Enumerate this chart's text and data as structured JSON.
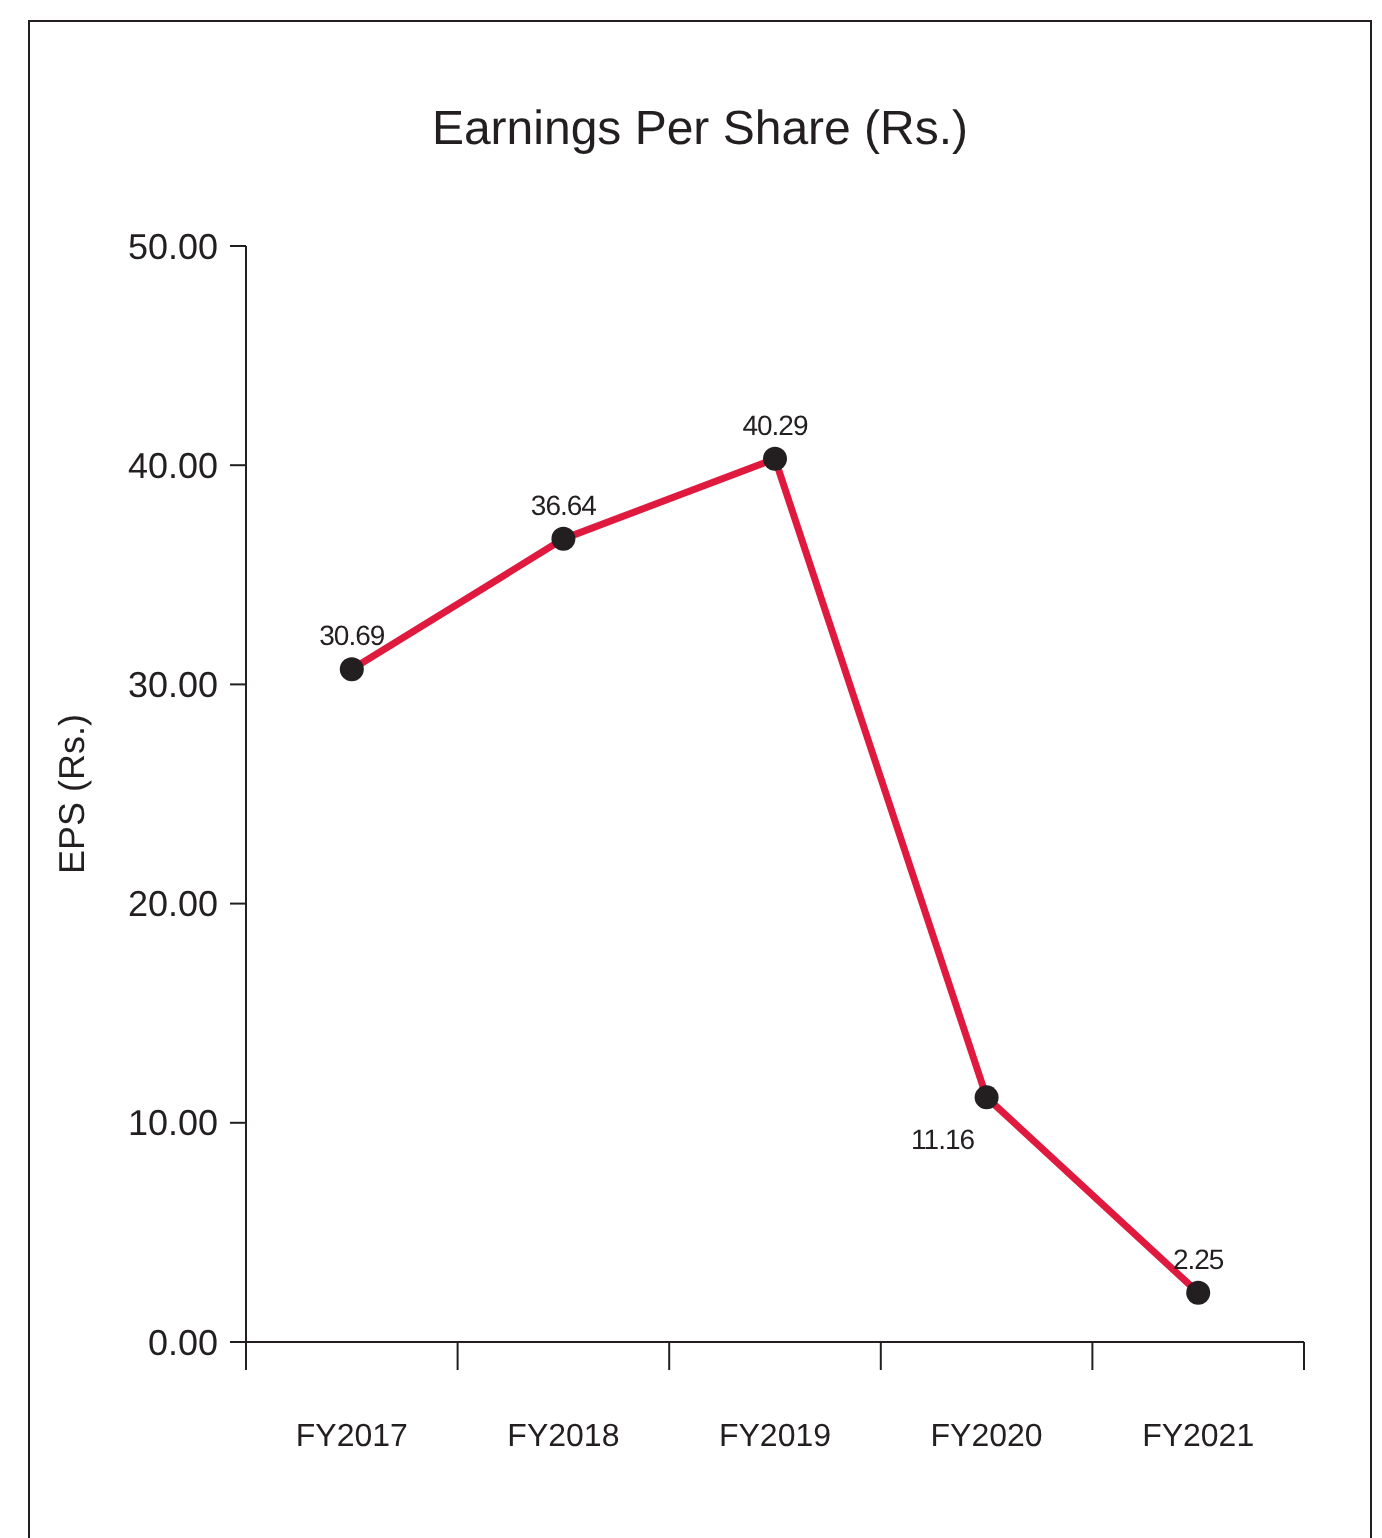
{
  "chart_data": {
    "type": "line",
    "title": "Earnings Per Share (Rs.)",
    "ylabel": "EPS (Rs.)",
    "categories": [
      "FY2017",
      "FY2018",
      "FY2019",
      "FY2020",
      "FY2021"
    ],
    "series": [
      {
        "color": "#e0193f",
        "values": [
          30.69,
          36.64,
          40.29,
          11.16,
          2.25
        ]
      }
    ],
    "ylim": [
      0,
      50
    ],
    "yticks": [
      {
        "value": 0,
        "label": "0.00"
      },
      {
        "value": 10,
        "label": "10.00"
      },
      {
        "value": 20,
        "label": "20.00"
      },
      {
        "value": 30,
        "label": "30.00"
      },
      {
        "value": 40,
        "label": "40.00"
      },
      {
        "value": 50,
        "label": "50.00"
      }
    ],
    "marker": "circle",
    "line_style": "solid",
    "data_labels": true,
    "grid": false
  }
}
